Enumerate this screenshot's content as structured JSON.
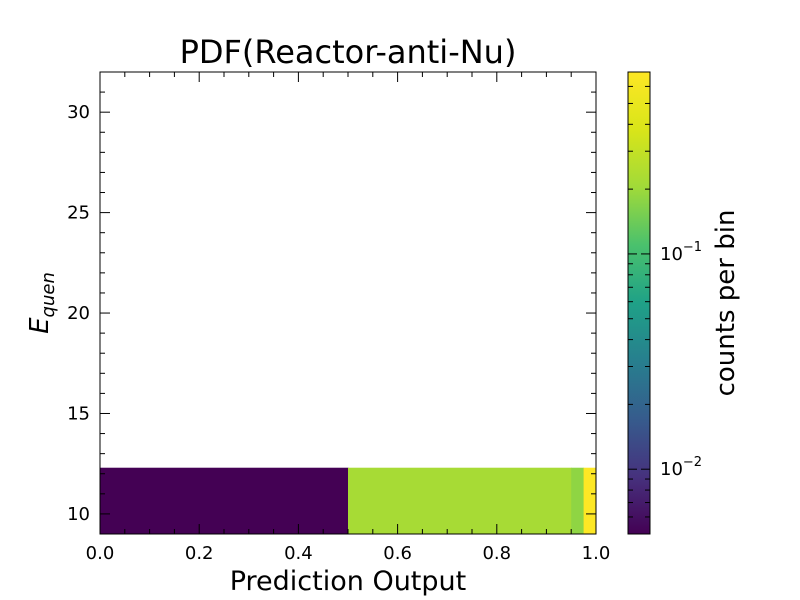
{
  "chart_data": {
    "type": "heatmap",
    "title": "PDF(Reactor-anti-Nu)",
    "xlabel": "Prediction Output",
    "ylabel_main": "E",
    "ylabel_sub": "quen",
    "xlim": [
      0.0,
      1.0
    ],
    "ylim": [
      9.0,
      32.0
    ],
    "x_ticks": [
      0.0,
      0.2,
      0.4,
      0.6,
      0.8,
      1.0
    ],
    "x_tick_labels": [
      "0.0",
      "0.2",
      "0.4",
      "0.6",
      "0.8",
      "1.0"
    ],
    "y_ticks": [
      10,
      15,
      20,
      25,
      30
    ],
    "y_tick_labels": [
      "10",
      "15",
      "20",
      "25",
      "30"
    ],
    "grid": false,
    "cells": [
      {
        "x0": 0.0,
        "x1": 0.5,
        "y0": 9.0,
        "y1": 12.3,
        "value": 0.005
      },
      {
        "x0": 0.5,
        "x1": 0.95,
        "y0": 9.0,
        "y1": 12.3,
        "value": 0.22
      },
      {
        "x0": 0.95,
        "x1": 0.975,
        "y0": 9.0,
        "y1": 12.3,
        "value": 0.18
      },
      {
        "x0": 0.975,
        "x1": 1.0,
        "y0": 9.0,
        "y1": 12.3,
        "value": 0.7
      }
    ],
    "colorbar": {
      "label": "counts per bin",
      "scale": "log",
      "colormap": "viridis",
      "vmin": 0.005,
      "vmax": 0.7,
      "ticks": [
        {
          "value": 0.01,
          "base": "10",
          "exp": "−2"
        },
        {
          "value": 0.1,
          "base": "10",
          "exp": "−1"
        }
      ]
    }
  }
}
